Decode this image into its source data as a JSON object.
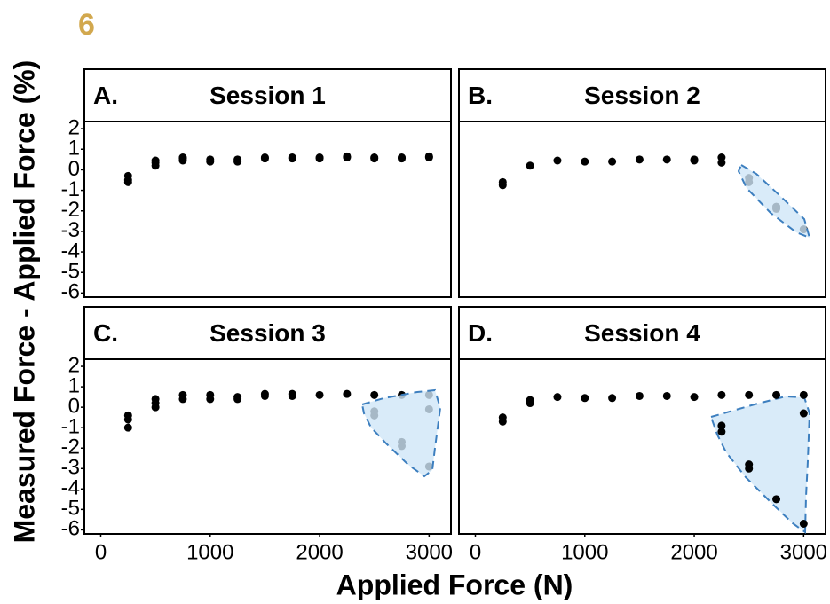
{
  "figure_label": "6",
  "y_label": "Measured Force - Applied Force (%)",
  "x_label": "Applied Force (N)",
  "chart_data": [
    {
      "type": "scatter",
      "panel_label": "A.",
      "title": "Session 1",
      "color": "#000000",
      "x": [
        250,
        250,
        250,
        500,
        500,
        500,
        750,
        750,
        750,
        1000,
        1000,
        1250,
        1250,
        1500,
        1500,
        1750,
        1750,
        2000,
        2000,
        2250,
        2250,
        2500,
        2500,
        2750,
        2750,
        3000,
        3000
      ],
      "y": [
        -0.3,
        -0.5,
        -0.6,
        0.2,
        0.35,
        0.45,
        0.45,
        0.55,
        0.6,
        0.4,
        0.5,
        0.4,
        0.5,
        0.55,
        0.6,
        0.55,
        0.6,
        0.55,
        0.6,
        0.6,
        0.65,
        0.55,
        0.6,
        0.55,
        0.6,
        0.6,
        0.65
      ],
      "xlim": [
        -150,
        3200
      ],
      "ylim": [
        -6.2,
        2.35
      ],
      "yticks": [
        2,
        1,
        0,
        -1,
        -2,
        -3,
        -4,
        -5,
        -6
      ]
    },
    {
      "type": "scatter",
      "panel_label": "B.",
      "title": "Session 2",
      "color": "#000000",
      "x": [
        250,
        250,
        500,
        750,
        1000,
        1250,
        1500,
        1750,
        2000,
        2000,
        2250,
        2250,
        2500,
        2500,
        2750,
        2750,
        3000
      ],
      "y": [
        -0.6,
        -0.75,
        0.2,
        0.45,
        0.4,
        0.4,
        0.5,
        0.5,
        0.5,
        0.45,
        0.6,
        0.35,
        -0.4,
        -0.6,
        -1.8,
        -1.9,
        -2.9
      ],
      "xlim": [
        -150,
        3200
      ],
      "ylim": [
        -6.2,
        2.35
      ]
    },
    {
      "type": "scatter",
      "panel_label": "C.",
      "title": "Session 3",
      "color": "#000000",
      "x": [
        250,
        250,
        250,
        500,
        500,
        500,
        750,
        750,
        1000,
        1000,
        1250,
        1250,
        1500,
        1500,
        1750,
        1750,
        2000,
        2250,
        2500,
        2500,
        2500,
        2750,
        2750,
        2750,
        3000,
        3000,
        3000
      ],
      "y": [
        -0.4,
        -0.6,
        -1.0,
        0,
        0.2,
        0.4,
        0.4,
        0.6,
        0.4,
        0.6,
        0.4,
        0.5,
        0.55,
        0.65,
        0.55,
        0.65,
        0.6,
        0.65,
        0.6,
        -0.4,
        -0.2,
        0.6,
        -1.7,
        -1.9,
        0.6,
        -0.1,
        -2.9
      ],
      "xlim": [
        -150,
        3200
      ],
      "ylim": [
        -6.2,
        2.35
      ],
      "xticks": [
        0,
        1000,
        2000,
        3000
      ],
      "yticks": [
        2,
        1,
        0,
        -1,
        -2,
        -3,
        -4,
        -5,
        -6
      ]
    },
    {
      "type": "scatter",
      "panel_label": "D.",
      "title": "Session 4",
      "color": "#000000",
      "x": [
        250,
        250,
        500,
        500,
        750,
        1000,
        1250,
        1500,
        1750,
        2000,
        2250,
        2250,
        2250,
        2500,
        2500,
        2500,
        2750,
        2750,
        3000,
        3000,
        3000
      ],
      "y": [
        -0.5,
        -0.7,
        0.2,
        0.35,
        0.5,
        0.45,
        0.45,
        0.55,
        0.55,
        0.5,
        0.6,
        -0.9,
        -1.2,
        0.6,
        -2.8,
        -3.0,
        0.6,
        -4.5,
        0.6,
        -0.3,
        -5.7
      ],
      "xlim": [
        -150,
        3200
      ],
      "ylim": [
        -6.2,
        2.35
      ],
      "xticks": [
        0,
        1000,
        2000,
        3000
      ]
    }
  ]
}
